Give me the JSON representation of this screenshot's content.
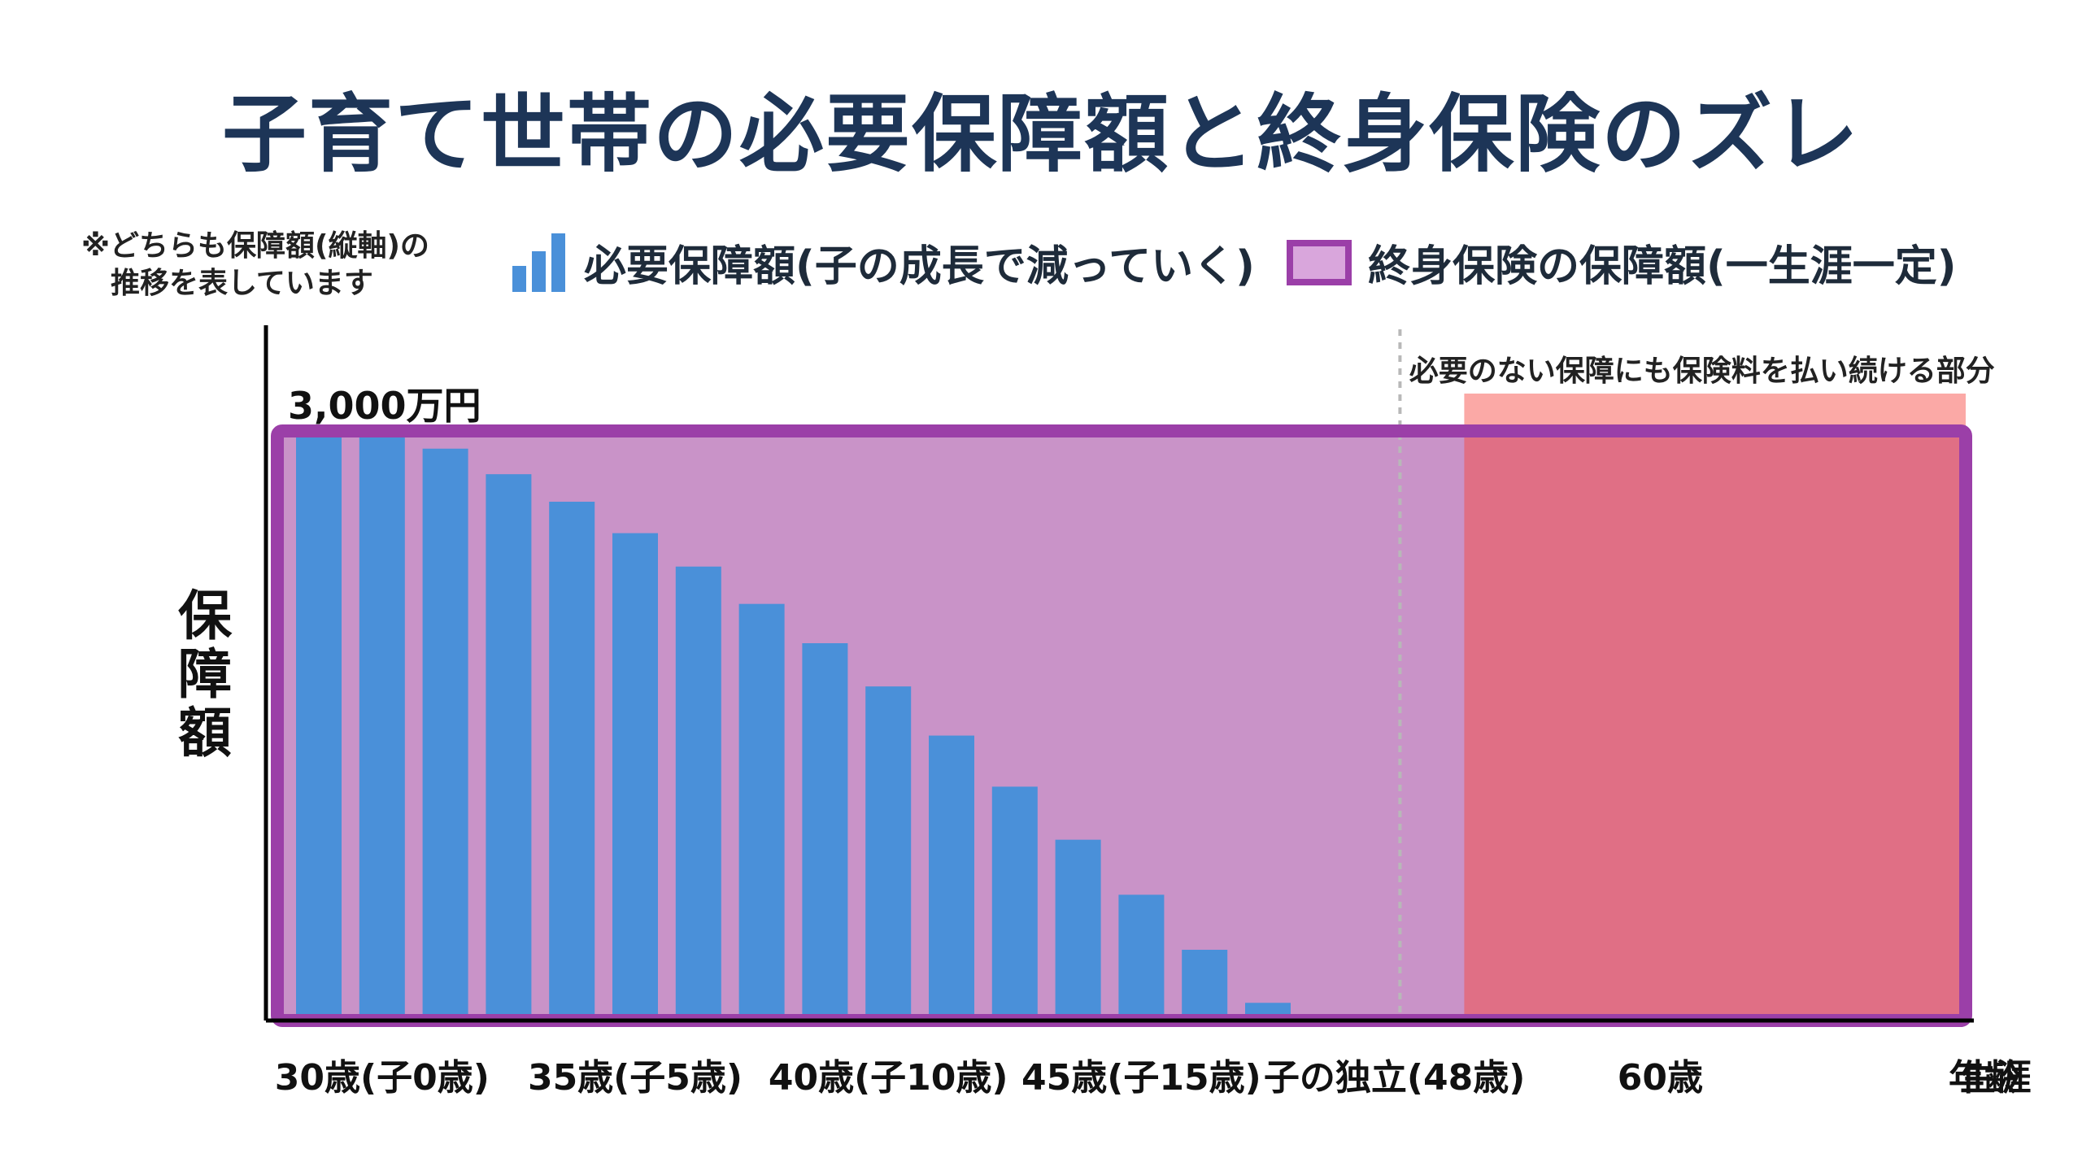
{
  "title": "子育て世帯の必要保障額と終身保険のズレ",
  "note": {
    "line1": "※どちらも保障額(縦軸)の",
    "line2": "推移を表しています"
  },
  "legend": {
    "bars_label": "必要保障額(子の成長で減っていく)",
    "whole_life_label": "終身保険の保障額(一生涯一定)"
  },
  "chart_data": {
    "type": "bar",
    "ylabel": "保障額",
    "xlabel": "年齢",
    "unit": "万円",
    "y_max_label": "3,000万円",
    "ylim": [
      0,
      3000
    ],
    "bars": {
      "name": "必要保障額(子の成長で減っていく)",
      "ages": [
        30,
        31,
        32,
        33,
        34,
        35,
        36,
        37,
        38,
        39,
        40,
        41,
        42,
        43,
        44,
        45
      ],
      "values": [
        3000,
        3000,
        2910,
        2780,
        2640,
        2480,
        2310,
        2120,
        1920,
        1700,
        1450,
        1190,
        920,
        640,
        360,
        90
      ]
    },
    "whole_life": {
      "name": "終身保険の保障額(一生涯一定)",
      "value": 3000
    },
    "independence_age": 48,
    "excess_annotation": "必要のない保障にも保険料を払い続ける部分",
    "x_ticks": [
      {
        "label": "30歳(子0歳)",
        "age": 31
      },
      {
        "label": "35歳(子5歳)",
        "age": 35
      },
      {
        "label": "40歳(子10歳)",
        "age": 39
      },
      {
        "label": "45歳(子15歳)",
        "age": 43
      },
      {
        "label": "子の独立(48歳)",
        "age": 47
      },
      {
        "label": "60歳",
        "age": 51.2
      },
      {
        "label": "生涯",
        "age": 56.5
      }
    ],
    "colors": {
      "bars": "#4a90d9",
      "whole_life_fill": "#c993c8",
      "whole_life_border": "#9b3fa8",
      "excess_fill": "#e06f85",
      "excess_band": "#fba9a6",
      "title": "#1d3557"
    }
  }
}
